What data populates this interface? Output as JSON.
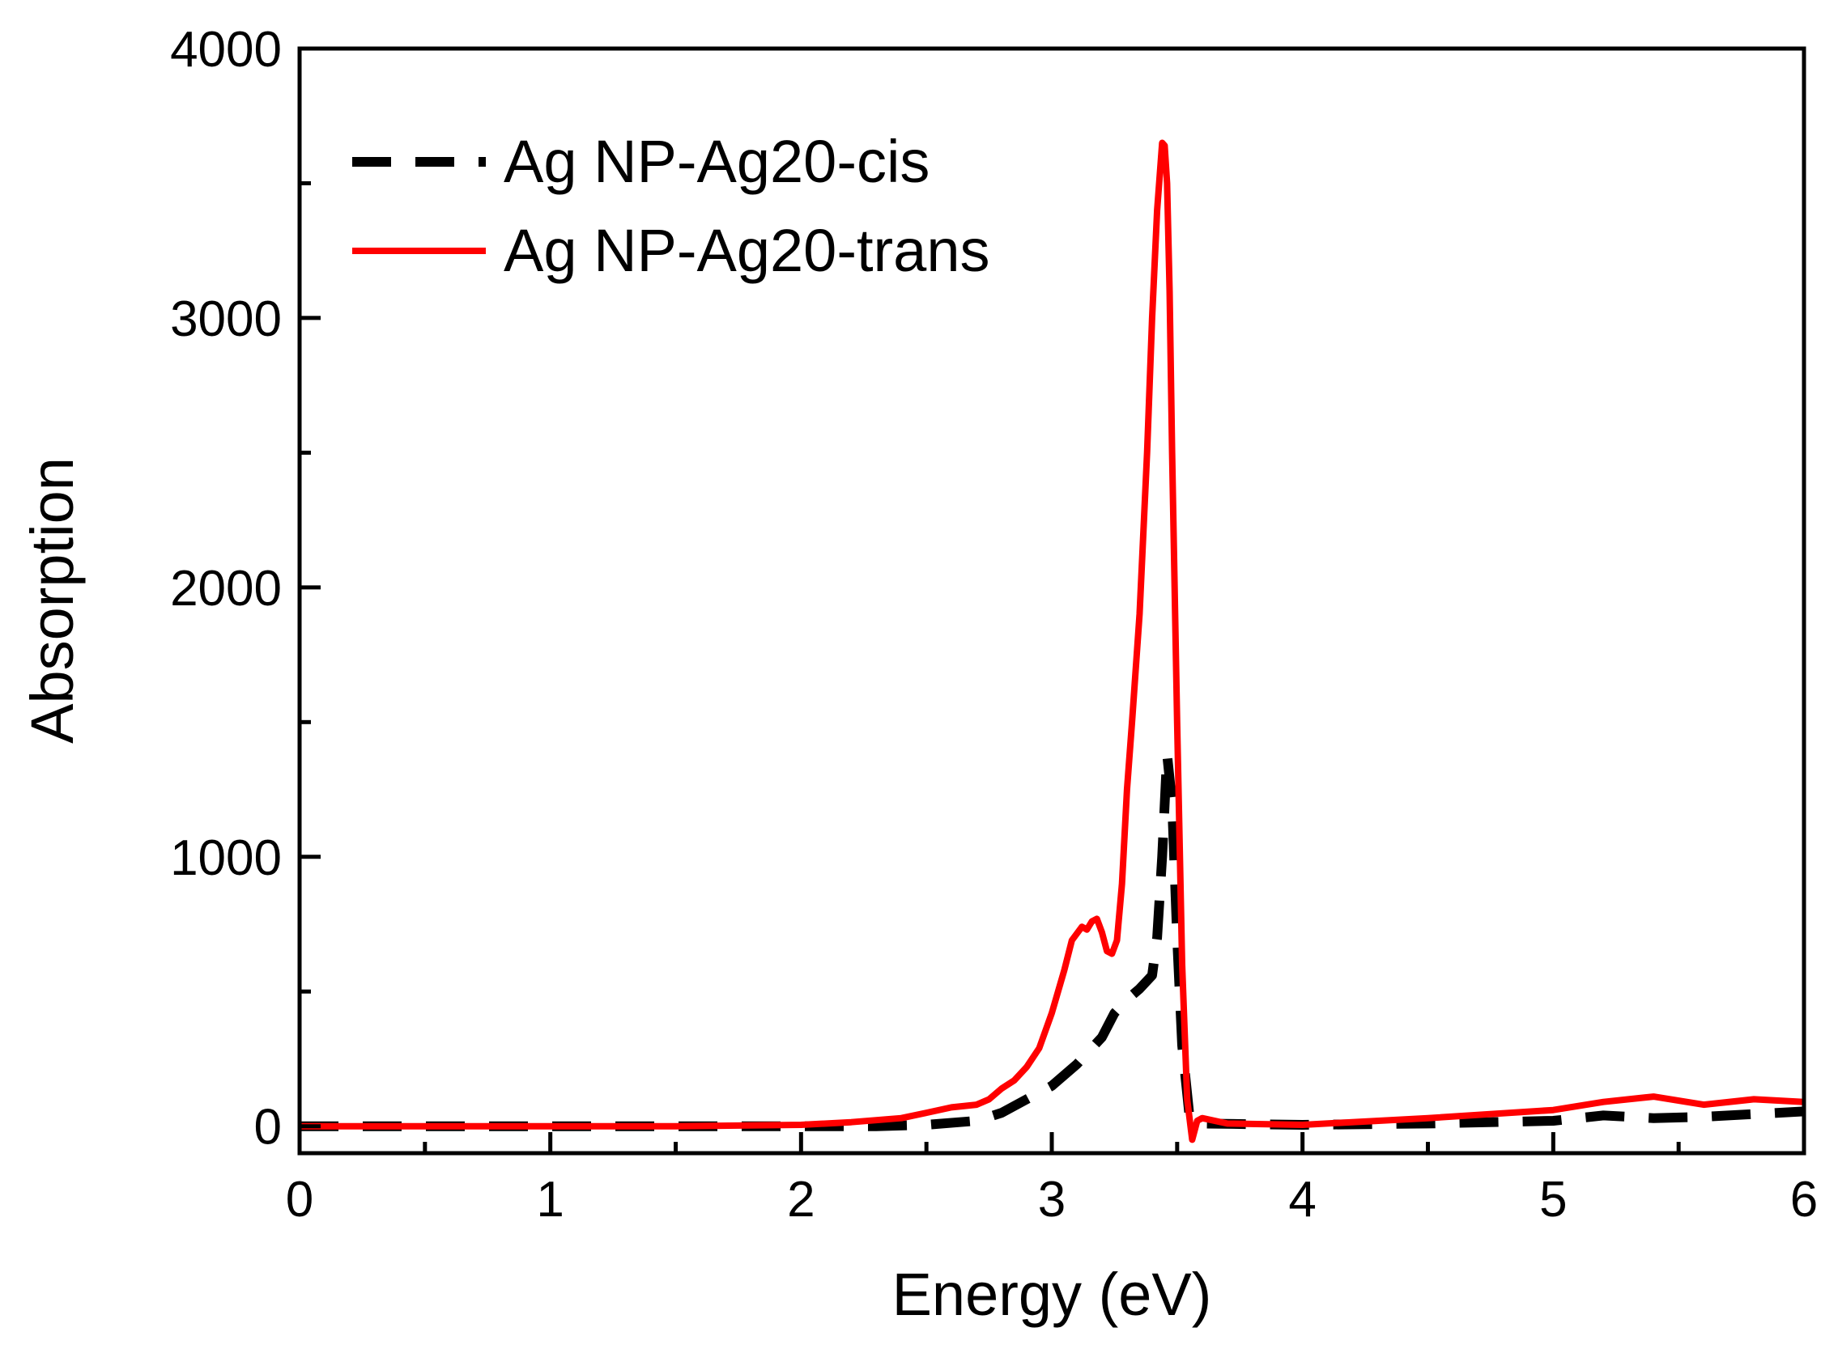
{
  "chart_data": {
    "type": "line",
    "title": "",
    "xlabel": "Energy (eV)",
    "ylabel": "Absorption",
    "xlim": [
      0,
      6
    ],
    "ylim": [
      -100,
      4000
    ],
    "xticks": [
      0,
      1,
      2,
      3,
      4,
      5,
      6
    ],
    "xtick_labels": [
      "0",
      "1",
      "2",
      "3",
      "4",
      "5",
      "6"
    ],
    "yticks": [
      0,
      1000,
      2000,
      3000,
      4000
    ],
    "ytick_labels": [
      "0",
      "1000",
      "2000",
      "3000",
      "4000"
    ],
    "grid": false,
    "legend_position": "top-left",
    "series": [
      {
        "name": "Ag NP-Ag20-cis",
        "color": "#000000",
        "style": "dashed",
        "x": [
          0,
          1.0,
          2.0,
          2.3,
          2.5,
          2.7,
          2.8,
          2.9,
          3.0,
          3.1,
          3.2,
          3.25,
          3.3,
          3.35,
          3.4,
          3.42,
          3.44,
          3.46,
          3.48,
          3.5,
          3.52,
          3.55,
          3.6,
          4.0,
          4.5,
          5.0,
          5.2,
          5.4,
          5.6,
          5.8,
          6.0
        ],
        "y": [
          0,
          0,
          0,
          0,
          5,
          20,
          50,
          100,
          150,
          230,
          330,
          420,
          470,
          510,
          560,
          700,
          1000,
          1380,
          1200,
          700,
          300,
          30,
          10,
          5,
          10,
          20,
          40,
          30,
          35,
          45,
          55
        ]
      },
      {
        "name": "Ag NP-Ag20-trans",
        "color": "#ff0000",
        "style": "solid",
        "x": [
          0,
          1.0,
          1.5,
          2.0,
          2.2,
          2.4,
          2.5,
          2.6,
          2.7,
          2.75,
          2.8,
          2.85,
          2.9,
          2.95,
          3.0,
          3.05,
          3.08,
          3.12,
          3.14,
          3.16,
          3.18,
          3.2,
          3.22,
          3.24,
          3.26,
          3.28,
          3.3,
          3.32,
          3.35,
          3.38,
          3.4,
          3.42,
          3.44,
          3.45,
          3.46,
          3.47,
          3.48,
          3.5,
          3.52,
          3.54,
          3.56,
          3.58,
          3.6,
          3.7,
          4.0,
          4.5,
          5.0,
          5.2,
          5.4,
          5.6,
          5.8,
          6.0
        ],
        "y": [
          0,
          0,
          0,
          5,
          15,
          30,
          50,
          70,
          80,
          100,
          140,
          170,
          220,
          290,
          420,
          580,
          690,
          740,
          730,
          760,
          770,
          720,
          650,
          640,
          690,
          900,
          1250,
          1500,
          1900,
          2500,
          3000,
          3400,
          3650,
          3640,
          3500,
          3100,
          2500,
          1500,
          600,
          100,
          -50,
          20,
          30,
          10,
          5,
          30,
          60,
          90,
          110,
          80,
          100,
          90
        ]
      }
    ]
  }
}
